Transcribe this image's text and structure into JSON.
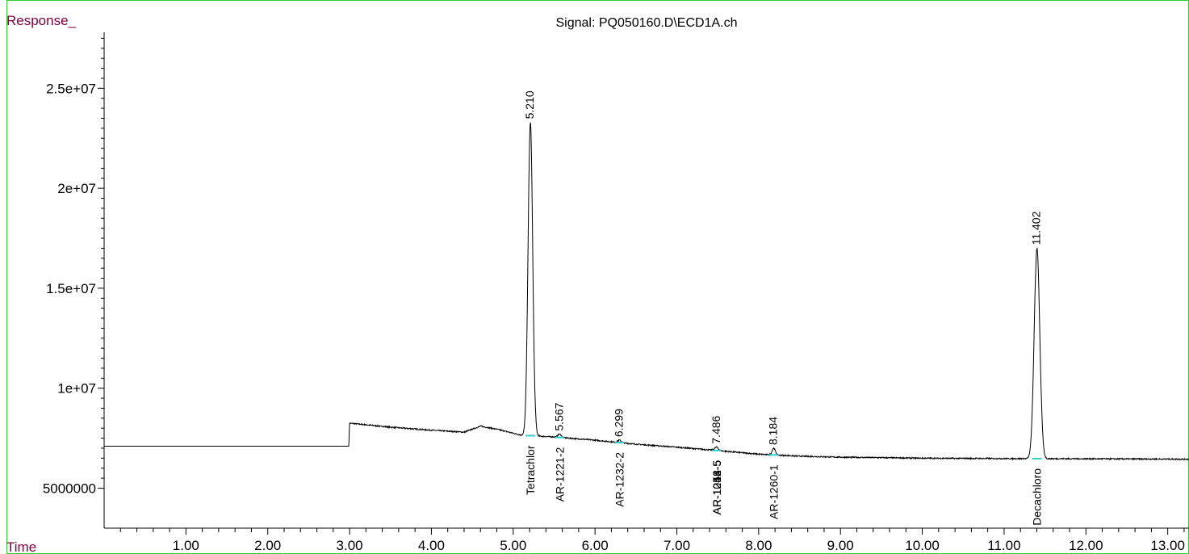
{
  "chart_data": {
    "type": "line",
    "title": "Signal: PQ050160.D\\ECD1A.ch",
    "ylabel": "Response_",
    "xlabel": "Time",
    "xlim": [
      0,
      13.26
    ],
    "ylim": [
      3000000,
      27800000
    ],
    "y_ticks": [
      {
        "value": 5000000,
        "label": "5000000"
      },
      {
        "value": 10000000,
        "label": "1e+07"
      },
      {
        "value": 15000000,
        "label": "1.5e+07"
      },
      {
        "value": 20000000,
        "label": "2e+07"
      },
      {
        "value": 25000000,
        "label": "2.5e+07"
      }
    ],
    "x_ticks": [
      {
        "value": 1,
        "label": "1.00"
      },
      {
        "value": 2,
        "label": "2.00"
      },
      {
        "value": 3,
        "label": "3.00"
      },
      {
        "value": 4,
        "label": "4.00"
      },
      {
        "value": 5,
        "label": "5.00"
      },
      {
        "value": 6,
        "label": "6.00"
      },
      {
        "value": 7,
        "label": "7.00"
      },
      {
        "value": 8,
        "label": "8.00"
      },
      {
        "value": 9,
        "label": "9.00"
      },
      {
        "value": 10,
        "label": "10.00"
      },
      {
        "value": 11,
        "label": "11.00"
      },
      {
        "value": 12,
        "label": "12.00"
      },
      {
        "value": 13,
        "label": "13.00"
      }
    ],
    "baseline": [
      [
        0.0,
        7100000
      ],
      [
        2.99,
        7100000
      ],
      [
        3.0,
        8250000
      ],
      [
        3.5,
        8050000
      ],
      [
        4.0,
        7900000
      ],
      [
        4.4,
        7800000
      ],
      [
        4.6,
        8100000
      ],
      [
        4.8,
        7950000
      ],
      [
        5.1,
        7650000
      ],
      [
        5.5,
        7560000
      ],
      [
        6.0,
        7400000
      ],
      [
        6.5,
        7200000
      ],
      [
        7.0,
        7050000
      ],
      [
        7.5,
        6880000
      ],
      [
        8.0,
        6700000
      ],
      [
        8.5,
        6600000
      ],
      [
        9.0,
        6550000
      ],
      [
        10.0,
        6500000
      ],
      [
        11.0,
        6480000
      ],
      [
        12.0,
        6470000
      ],
      [
        13.26,
        6450000
      ]
    ],
    "peaks": [
      {
        "rt": 5.21,
        "label": "5.210",
        "height": 23300000,
        "compound": "Tetrachlor"
      },
      {
        "rt": 5.567,
        "label": "5.567",
        "height": 7700000,
        "compound": "AR-1221-2"
      },
      {
        "rt": 6.299,
        "label": "6.299",
        "height": 7400000,
        "compound": "AR-1232-2"
      },
      {
        "rt": 7.486,
        "label": "7.486",
        "height": 7050000,
        "compound": "AR-1248-5"
      },
      {
        "rt": 8.184,
        "label": "8.184",
        "height": 7000000,
        "compound": "AR-1260-1"
      },
      {
        "rt": 11.402,
        "label": "11.402",
        "height": 17000000,
        "compound": "Decachloro"
      }
    ],
    "overlapping_compound_labels": [
      {
        "rt": 7.486,
        "compound": "AR-1242-5"
      },
      {
        "rt": 7.486,
        "compound": "AR-1254-5"
      },
      {
        "rt": 7.486,
        "compound": "AR-1016-5"
      }
    ],
    "legend": "none",
    "grid": false
  }
}
